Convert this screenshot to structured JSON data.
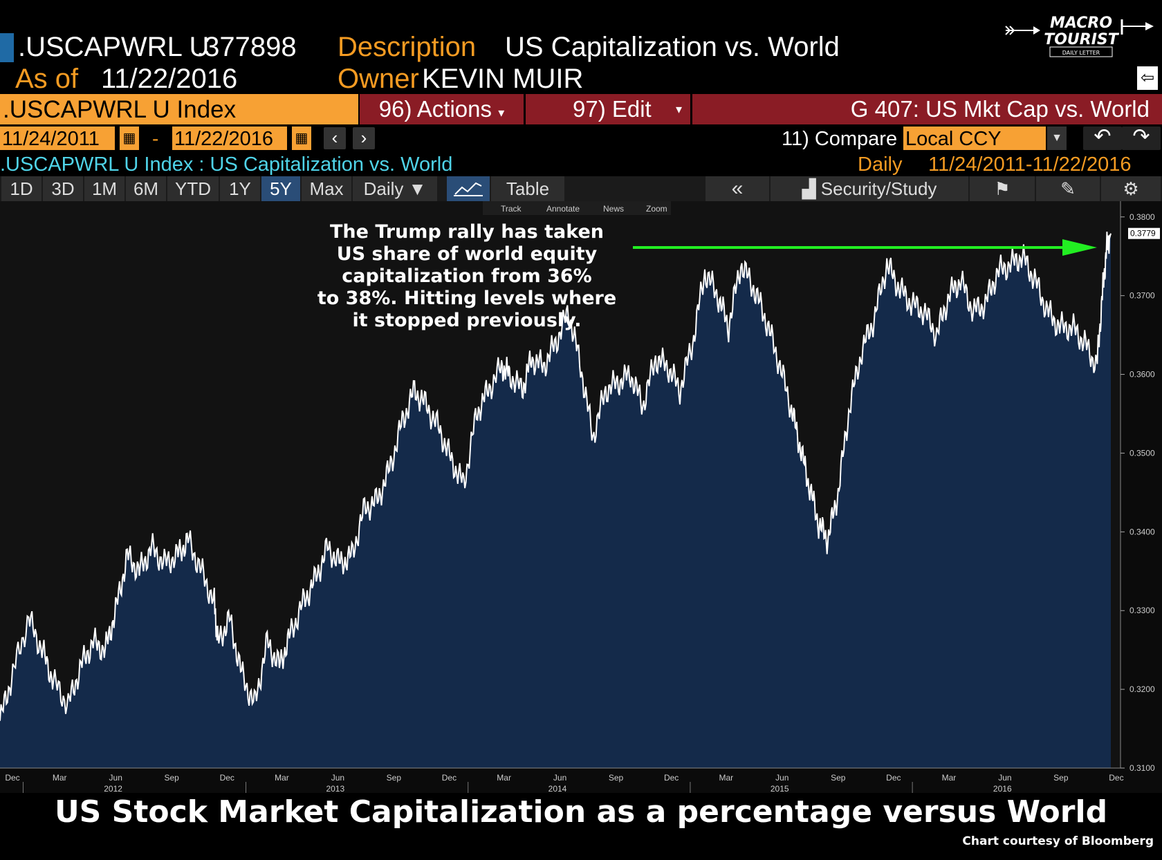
{
  "header": {
    "ticker": ".USCAPWRL U",
    "last_value": ".377898",
    "desc_label": "Description",
    "desc_value": "US Capitalization vs. World",
    "asof_label": "As of",
    "asof_value": "11/22/2016",
    "owner_label": "Owner",
    "owner_value": "KEVIN MUIR"
  },
  "logo": {
    "line1": "MACRO",
    "line2": "TOURIST",
    "line3": "DAILY LETTER"
  },
  "commandbar": {
    "security": ".USCAPWRL U Index",
    "actions": "96) Actions",
    "edit": "97) Edit",
    "title": "G 407: US Mkt Cap vs. World"
  },
  "daterow": {
    "start": "11/24/2011",
    "sep": "-",
    "end": "11/22/2016",
    "compare": "11) Compare",
    "currency": "Local CCY"
  },
  "inforow": {
    "series_title": ".USCAPWRL U Index : US Capitalization vs. World",
    "freq": "Daily",
    "range": "11/24/2011-11/22/2016"
  },
  "tabs": [
    "1D",
    "3D",
    "1M",
    "6M",
    "YTD",
    "1Y",
    "5Y",
    "Max",
    "Daily ▼"
  ],
  "active_tab": "5Y",
  "table_label": "Table",
  "security_study": "Security/Study",
  "chart_tools": [
    "Track",
    "Annotate",
    "News",
    "Zoom"
  ],
  "annotation": "The Trump rally has taken\nUS share of world equity\ncapitalization from 36%\nto 38%.  Hitting levels where\nit stopped previously.",
  "bottom_title": "US Stock Market Capitalization as a percentage versus World",
  "courtesy": "Chart courtesy of Bloomberg",
  "colors": {
    "orange": "#f59b22",
    "accent_red": "#8a1c25",
    "area_fill": "#142a4a",
    "arrow": "#22ee22",
    "cyan": "#4fd3e8"
  },
  "chart_data": {
    "type": "area",
    "title": "",
    "xlabel": "",
    "ylabel": "",
    "ylim": [
      0.31,
      0.382
    ],
    "yticks": [
      "0.3100",
      "0.3200",
      "0.3300",
      "0.3400",
      "0.3500",
      "0.3600",
      "0.3700",
      "0.3800"
    ],
    "last_label": "0.3779",
    "xtick_months": [
      "Dec",
      "Mar",
      "Jun",
      "Sep",
      "Dec",
      "Mar",
      "Jun",
      "Sep",
      "Dec",
      "Mar",
      "Jun",
      "Sep",
      "Dec",
      "Mar",
      "Jun",
      "Sep",
      "Dec",
      "Mar",
      "Jun",
      "Sep",
      "Dec"
    ],
    "xtick_years": [
      "2012",
      "2013",
      "2014",
      "2015",
      "2016"
    ],
    "x": [
      "2011-11-24",
      "2011-12-15",
      "2012-01-10",
      "2012-02-01",
      "2012-02-20",
      "2012-03-15",
      "2012-04-05",
      "2012-04-25",
      "2012-05-15",
      "2012-06-01",
      "2012-06-20",
      "2012-07-10",
      "2012-07-30",
      "2012-08-20",
      "2012-09-10",
      "2012-09-28",
      "2012-10-20",
      "2012-11-10",
      "2012-11-16",
      "2012-12-05",
      "2012-12-25",
      "2013-01-15",
      "2013-02-05",
      "2013-02-25",
      "2013-03-15",
      "2013-04-05",
      "2013-04-25",
      "2013-05-15",
      "2013-06-05",
      "2013-06-24",
      "2013-07-15",
      "2013-08-05",
      "2013-08-25",
      "2013-09-15",
      "2013-10-05",
      "2013-10-25",
      "2013-11-15",
      "2013-12-05",
      "2013-12-25",
      "2014-01-15",
      "2014-02-03",
      "2014-02-25",
      "2014-03-10",
      "2014-03-31",
      "2014-04-15",
      "2014-05-05",
      "2014-05-25",
      "2014-06-15",
      "2014-07-05",
      "2014-07-25",
      "2014-08-15",
      "2014-09-05",
      "2014-09-25",
      "2014-10-15",
      "2014-11-05",
      "2014-11-25",
      "2014-12-15",
      "2015-01-05",
      "2015-01-25",
      "2015-02-15",
      "2015-03-05",
      "2015-03-25",
      "2015-04-15",
      "2015-05-05",
      "2015-05-25",
      "2015-06-15",
      "2015-06-30",
      "2015-07-15",
      "2015-07-31",
      "2015-08-15",
      "2015-09-01",
      "2015-09-20",
      "2015-10-10",
      "2015-10-30",
      "2015-11-20",
      "2015-12-10",
      "2015-12-30",
      "2016-01-20",
      "2016-02-10",
      "2016-03-01",
      "2016-03-20",
      "2016-04-10",
      "2016-04-30",
      "2016-05-20",
      "2016-06-10",
      "2016-06-30",
      "2016-07-20",
      "2016-08-10",
      "2016-08-30",
      "2016-09-20",
      "2016-10-10",
      "2016-10-30",
      "2016-11-08",
      "2016-11-15",
      "2016-11-22"
    ],
    "series": [
      {
        "values": [
          0.316,
          0.322,
          0.329,
          0.325,
          0.321,
          0.318,
          0.323,
          0.326,
          0.325,
          0.33,
          0.337,
          0.335,
          0.338,
          0.336,
          0.337,
          0.339,
          0.335,
          0.331,
          0.326,
          0.329,
          0.322,
          0.318,
          0.326,
          0.323,
          0.327,
          0.331,
          0.334,
          0.338,
          0.336,
          0.337,
          0.343,
          0.344,
          0.348,
          0.354,
          0.358,
          0.356,
          0.353,
          0.349,
          0.346,
          0.355,
          0.358,
          0.361,
          0.36,
          0.358,
          0.362,
          0.361,
          0.364,
          0.368,
          0.361,
          0.352,
          0.358,
          0.359,
          0.36,
          0.356,
          0.362,
          0.361,
          0.358,
          0.364,
          0.373,
          0.37,
          0.366,
          0.374,
          0.371,
          0.367,
          0.362,
          0.356,
          0.351,
          0.346,
          0.341,
          0.339,
          0.345,
          0.356,
          0.363,
          0.367,
          0.374,
          0.371,
          0.369,
          0.368,
          0.365,
          0.37,
          0.372,
          0.368,
          0.369,
          0.373,
          0.374,
          0.375,
          0.372,
          0.368,
          0.366,
          0.366,
          0.364,
          0.361,
          0.37,
          0.376,
          0.3779
        ]
      }
    ]
  }
}
